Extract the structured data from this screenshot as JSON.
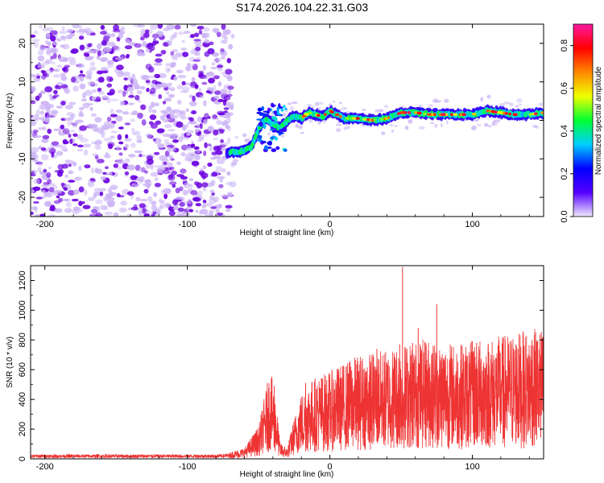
{
  "title": "S174.2026.104.22.31.G03",
  "colors": {
    "snr_line": "#ee3333",
    "scatter_purple": "#6a00e0",
    "scatter_light": "#cbb3f5",
    "axes": "#000000"
  },
  "chart_data": [
    {
      "type": "heatmap",
      "name": "spectrogram",
      "xlabel": "Height of straight line (km)",
      "ylabel": "Frequency (Hz)",
      "xlim": [
        -210,
        150
      ],
      "ylim": [
        -25,
        25
      ],
      "xticks": [
        -200,
        -100,
        0,
        100
      ],
      "xtick_labels": [
        "-200",
        "-100",
        "0",
        "100"
      ],
      "yticks": [
        -20,
        -10,
        0,
        10,
        20
      ],
      "ytick_labels": [
        "-20",
        "-10",
        "0",
        "10",
        "20"
      ],
      "noise_region_x": [
        -210,
        -72
      ],
      "signal_ridge": {
        "x": [
          -72,
          -62,
          -55,
          -50,
          -45,
          -40,
          -35,
          -30,
          -25,
          -20,
          -15,
          -10,
          -5,
          0,
          5,
          10,
          20,
          30,
          40,
          50,
          60,
          70,
          80,
          90,
          100,
          110,
          120,
          130,
          140,
          150
        ],
        "freq": [
          -8.5,
          -8,
          -7,
          -2,
          0.5,
          -1,
          -2,
          0,
          1,
          0.5,
          2,
          1.5,
          1,
          2.5,
          1.5,
          0.5,
          0.5,
          0,
          0.5,
          2,
          2,
          1.5,
          1.5,
          1.5,
          1.5,
          2.5,
          2,
          1.5,
          1.5,
          2
        ]
      },
      "colorbar": {
        "label": "Normalized spectral amplitude",
        "ticks": [
          0.0,
          0.2,
          0.4,
          0.6,
          0.8
        ],
        "tick_labels": [
          "0.0",
          "0.2",
          "0.4",
          "0.6",
          "0.8"
        ],
        "range": [
          0.0,
          0.9
        ],
        "stops": [
          "#f2eafd",
          "#5500ff",
          "#0000ff",
          "#00d0ff",
          "#00ff33",
          "#f0ff00",
          "#ff8800",
          "#ff0000",
          "#ff1aa0"
        ]
      }
    },
    {
      "type": "line",
      "name": "snr",
      "xlabel": "Height of straight line (km)",
      "ylabel": "SNR (10 * v/v)",
      "xlim": [
        -210,
        150
      ],
      "ylim": [
        0,
        1300
      ],
      "xticks": [
        -200,
        -100,
        0,
        100
      ],
      "xtick_labels": [
        "-200",
        "-100",
        "0",
        "100"
      ],
      "yticks": [
        0,
        200,
        400,
        600,
        800,
        1000,
        1200
      ],
      "ytick_labels": [
        "0",
        "200",
        "400",
        "600",
        "800",
        "1000",
        "1200"
      ],
      "envelope": {
        "x": [
          -210,
          -80,
          -70,
          -60,
          -50,
          -45,
          -42,
          -38,
          -35,
          -30,
          -25,
          -20,
          -15,
          -10,
          0,
          10,
          20,
          30,
          40,
          50,
          60,
          70,
          80,
          90,
          100,
          110,
          120,
          130,
          140,
          150
        ],
        "y": [
          20,
          20,
          25,
          40,
          120,
          250,
          330,
          230,
          60,
          40,
          150,
          240,
          280,
          300,
          320,
          350,
          380,
          390,
          400,
          420,
          430,
          440,
          430,
          420,
          430,
          440,
          450,
          460,
          470,
          480
        ]
      },
      "spikes": [
        {
          "x": -44,
          "y": 450
        },
        {
          "x": -39,
          "y": 490
        },
        {
          "x": -17,
          "y": 510
        },
        {
          "x": 20,
          "y": 560
        },
        {
          "x": 28,
          "y": 680
        },
        {
          "x": 33,
          "y": 740
        },
        {
          "x": 38,
          "y": 520
        },
        {
          "x": 44,
          "y": 620
        },
        {
          "x": 49,
          "y": 770
        },
        {
          "x": 51,
          "y": 1290
        },
        {
          "x": 53,
          "y": 560
        },
        {
          "x": 58,
          "y": 780
        },
        {
          "x": 62,
          "y": 880
        },
        {
          "x": 67,
          "y": 780
        },
        {
          "x": 72,
          "y": 710
        },
        {
          "x": 75,
          "y": 1040
        },
        {
          "x": 84,
          "y": 660
        },
        {
          "x": 92,
          "y": 760
        },
        {
          "x": 103,
          "y": 780
        },
        {
          "x": 108,
          "y": 650
        },
        {
          "x": 113,
          "y": 670
        },
        {
          "x": 122,
          "y": 630
        },
        {
          "x": 132,
          "y": 740
        },
        {
          "x": 142,
          "y": 800
        },
        {
          "x": 148,
          "y": 560
        }
      ]
    }
  ]
}
